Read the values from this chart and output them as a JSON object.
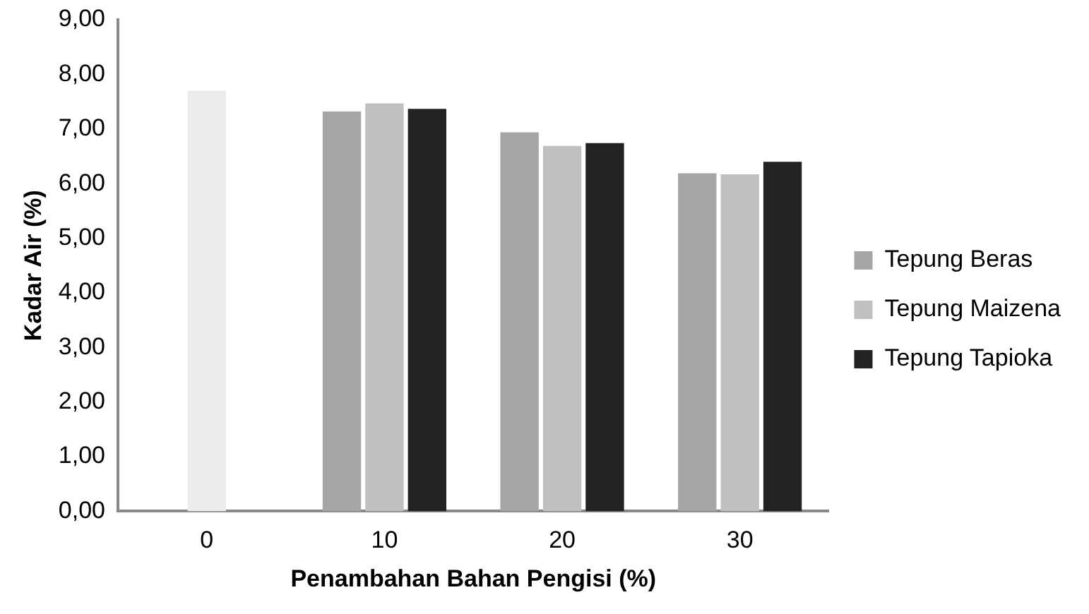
{
  "chart_data": {
    "type": "bar",
    "xlabel": "Penambahan Bahan Pengisi (%)",
    "ylabel": "Kadar Air (%)",
    "categories": [
      "0",
      "10",
      "20",
      "30"
    ],
    "series": [
      {
        "name": "Tepung Beras",
        "color": "#a6a6a6",
        "values": [
          null,
          7.32,
          6.94,
          6.19
        ]
      },
      {
        "name": "Tepung Maizena",
        "color": "#c0c0c0",
        "colors": [
          "#ececec",
          "#c0c0c0",
          "#c0c0c0",
          "#c0c0c0"
        ],
        "values": [
          7.7,
          7.47,
          6.69,
          6.17
        ]
      },
      {
        "name": "Tepung Tapioka",
        "color": "#222222",
        "values": [
          null,
          7.37,
          6.74,
          6.4
        ]
      }
    ],
    "ylim": [
      0,
      9
    ],
    "yticks": [
      {
        "value": 0,
        "label": "0,00"
      },
      {
        "value": 1,
        "label": "1,00"
      },
      {
        "value": 2,
        "label": "2,00"
      },
      {
        "value": 3,
        "label": "3,00"
      },
      {
        "value": 4,
        "label": "4,00"
      },
      {
        "value": 5,
        "label": "5,00"
      },
      {
        "value": 6,
        "label": "6,00"
      },
      {
        "value": 7,
        "label": "7,00"
      },
      {
        "value": 8,
        "label": "8,00"
      },
      {
        "value": 9,
        "label": "9,00"
      }
    ],
    "grid": false,
    "legend": "right"
  }
}
